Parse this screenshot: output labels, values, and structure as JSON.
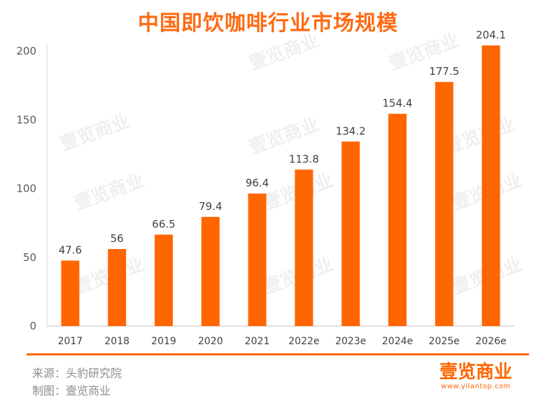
{
  "chart_data": {
    "type": "bar",
    "title": "中国即饮咖啡行业市场规模",
    "categories": [
      "2017",
      "2018",
      "2019",
      "2020",
      "2021",
      "2022e",
      "2023e",
      "2024e",
      "2025e",
      "2026e"
    ],
    "values": [
      47.6,
      56,
      66.5,
      79.4,
      96.4,
      113.8,
      134.2,
      154.4,
      177.5,
      204.1
    ],
    "data_labels": [
      "47.6",
      "56",
      "66.5",
      "79.4",
      "96.4",
      "113.8",
      "134.2",
      "154.4",
      "177.5",
      "204.1"
    ],
    "ylim": [
      0,
      200
    ],
    "yticks": [
      "0",
      "50",
      "100",
      "150",
      "200"
    ],
    "xlabel": "",
    "ylabel": "",
    "grid": false,
    "bar_color": "#ff6600"
  },
  "footer": {
    "source": "来源：头豹研究院",
    "made_by": "制图：壹览商业"
  },
  "logo": {
    "name": "壹览商业",
    "url": "www.yilantop.com"
  },
  "watermark": "壹览商业",
  "accent_color": "#ff6600"
}
